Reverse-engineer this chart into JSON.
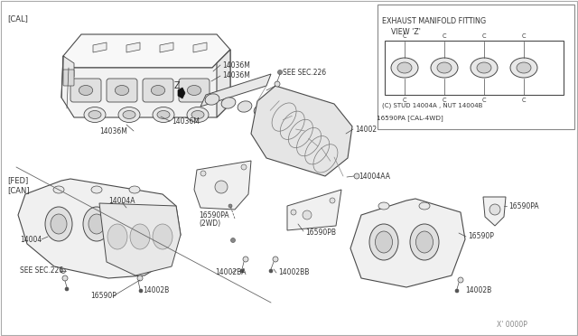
{
  "bg_color": "#ffffff",
  "lc": "#4a4a4a",
  "tc": "#333333",
  "labels": {
    "cal": "[CAL]",
    "fed": "[FED]",
    "can": "[CAN]",
    "14036M_a": "14036M",
    "14036M_b": "14036M",
    "14036M_c": "14036M",
    "14036M_d": "14036M",
    "z": "Z",
    "see226_top": "SEE SEC.226",
    "14002": "14002",
    "14002B_lft": "14002B",
    "14002B_rgt": "14002B",
    "14002BA": "14002BA",
    "14002BB": "14002BB",
    "14004": "14004",
    "14004A": "14004A",
    "14004AA": "14004AA",
    "16590P_lft": "16590P",
    "16590P_rgt": "16590P",
    "16590PA_2wd": "16590PA",
    "16590PA_2wd2": "(2WD)",
    "16590PA_cal4wd": "16590PA [CAL-4WD]",
    "16590PA_inset": "16590PA",
    "16590PB": "16590PB",
    "see226_lft": "SEE SEC.226",
    "exhaust_title": "EXHAUST MANIFOLD FITTING",
    "exhaust_view": "VIEW 'Z'",
    "stud_nut": "(C) STUD 14004A , NUT 14004B",
    "x_label": "X' 0000P"
  }
}
